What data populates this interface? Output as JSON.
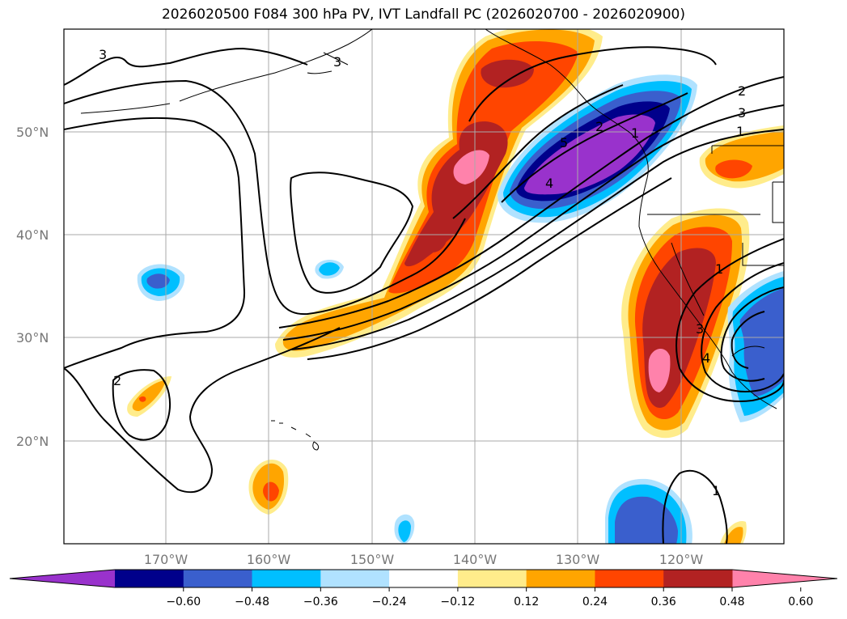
{
  "title": "2026020500 F084 300 hPa PV, IVT Landfall PC (2026020700 - 2026020900)",
  "map": {
    "lat_labels": [
      "50°N",
      "40°N",
      "30°N",
      "20°N"
    ],
    "lon_labels": [
      "170°W",
      "160°W",
      "150°W",
      "140°W",
      "130°W",
      "120°W"
    ],
    "pv_contour_labels": [
      "3",
      "3",
      "2",
      "1",
      "5",
      "4",
      "3",
      "2",
      "1",
      "2",
      "1",
      "3",
      "4",
      "1"
    ]
  },
  "colorbar": {
    "ticks": [
      "−0.60",
      "−0.48",
      "−0.36",
      "−0.24",
      "−0.12",
      "0.12",
      "0.24",
      "0.36",
      "0.48",
      "0.60"
    ],
    "colors": [
      "#9932cc",
      "#00008b",
      "#3a5fcd",
      "#00bfff",
      "#b0e2ff",
      "#ffffff",
      "#ffec8b",
      "#ffa500",
      "#ff4500",
      "#b22222",
      "#ff82ab"
    ]
  }
}
